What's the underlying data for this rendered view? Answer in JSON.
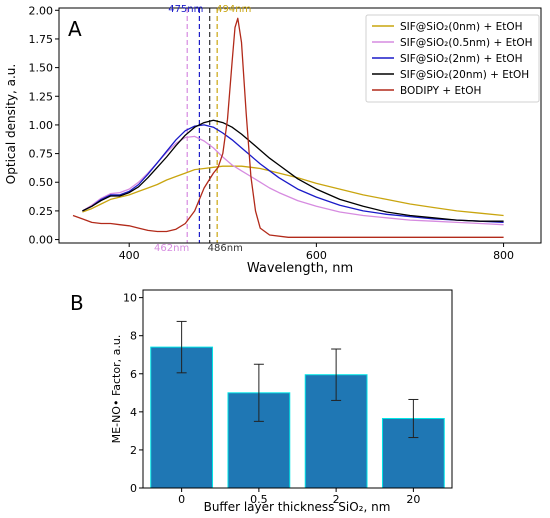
{
  "chart_data": [
    {
      "panel_label": "A",
      "type": "line",
      "xlabel": "Wavelength, nm",
      "ylabel": "Optical density, a.u.",
      "xlim": [
        325,
        840
      ],
      "ylim": [
        -0.03,
        2.02
      ],
      "xticks": [
        400,
        600,
        800
      ],
      "yticks": [
        0.0,
        0.25,
        0.5,
        0.75,
        1.0,
        1.25,
        1.5,
        1.75,
        2.0
      ],
      "legend_position": "top-right",
      "grid": false,
      "series": [
        {
          "name": "SIF@SiO₂(0nm) + EtOH",
          "color": "#c9a50f",
          "x": [
            350,
            360,
            370,
            380,
            390,
            400,
            410,
            420,
            430,
            440,
            450,
            460,
            470,
            480,
            490,
            500,
            510,
            520,
            530,
            540,
            550,
            560,
            580,
            600,
            625,
            650,
            675,
            700,
            725,
            750,
            775,
            800
          ],
          "y": [
            0.24,
            0.27,
            0.31,
            0.35,
            0.37,
            0.39,
            0.42,
            0.45,
            0.48,
            0.52,
            0.55,
            0.58,
            0.61,
            0.62,
            0.63,
            0.64,
            0.64,
            0.64,
            0.63,
            0.62,
            0.6,
            0.58,
            0.54,
            0.49,
            0.44,
            0.39,
            0.35,
            0.31,
            0.28,
            0.25,
            0.23,
            0.21
          ]
        },
        {
          "name": "SIF@SiO₂(0.5nm) + EtOH",
          "color": "#d68be0",
          "x": [
            350,
            360,
            370,
            380,
            390,
            400,
            410,
            420,
            430,
            440,
            450,
            460,
            470,
            480,
            490,
            500,
            510,
            520,
            530,
            540,
            550,
            560,
            580,
            600,
            625,
            650,
            675,
            700,
            725,
            750,
            775,
            800
          ],
          "y": [
            0.25,
            0.3,
            0.36,
            0.4,
            0.41,
            0.44,
            0.5,
            0.58,
            0.67,
            0.76,
            0.84,
            0.89,
            0.9,
            0.86,
            0.8,
            0.72,
            0.65,
            0.6,
            0.55,
            0.5,
            0.45,
            0.41,
            0.34,
            0.29,
            0.24,
            0.21,
            0.19,
            0.17,
            0.16,
            0.15,
            0.14,
            0.13
          ]
        },
        {
          "name": "SIF@SiO₂(2nm) + EtOH",
          "color": "#1a1ac8",
          "x": [
            350,
            360,
            370,
            380,
            390,
            400,
            410,
            420,
            430,
            440,
            450,
            460,
            470,
            480,
            490,
            500,
            510,
            520,
            530,
            540,
            550,
            560,
            580,
            600,
            625,
            650,
            675,
            700,
            725,
            750,
            775,
            800
          ],
          "y": [
            0.25,
            0.29,
            0.35,
            0.39,
            0.39,
            0.42,
            0.48,
            0.57,
            0.67,
            0.77,
            0.87,
            0.95,
            0.99,
            1.0,
            0.98,
            0.93,
            0.87,
            0.8,
            0.73,
            0.66,
            0.6,
            0.54,
            0.44,
            0.37,
            0.3,
            0.25,
            0.22,
            0.2,
            0.18,
            0.17,
            0.16,
            0.15
          ]
        },
        {
          "name": "SIF@SiO₂(20nm) + EtOH",
          "color": "#000000",
          "x": [
            350,
            360,
            370,
            380,
            390,
            400,
            410,
            420,
            430,
            440,
            450,
            460,
            470,
            480,
            490,
            500,
            510,
            520,
            530,
            540,
            550,
            560,
            580,
            600,
            625,
            650,
            675,
            700,
            725,
            750,
            775,
            800
          ],
          "y": [
            0.25,
            0.29,
            0.34,
            0.38,
            0.38,
            0.41,
            0.46,
            0.54,
            0.63,
            0.72,
            0.82,
            0.91,
            0.98,
            1.02,
            1.04,
            1.02,
            0.98,
            0.92,
            0.85,
            0.78,
            0.71,
            0.65,
            0.53,
            0.44,
            0.35,
            0.29,
            0.24,
            0.21,
            0.19,
            0.17,
            0.16,
            0.16
          ]
        },
        {
          "name": "BODIPY + EtOH",
          "color": "#b22a1a",
          "x": [
            340,
            350,
            360,
            370,
            380,
            390,
            400,
            410,
            420,
            430,
            440,
            450,
            460,
            470,
            480,
            490,
            495,
            500,
            505,
            510,
            513,
            516,
            520,
            525,
            530,
            535,
            540,
            550,
            570,
            600,
            650,
            700,
            750,
            800
          ],
          "y": [
            0.21,
            0.18,
            0.15,
            0.14,
            0.14,
            0.13,
            0.12,
            0.1,
            0.08,
            0.07,
            0.07,
            0.09,
            0.14,
            0.25,
            0.45,
            0.58,
            0.63,
            0.75,
            1.05,
            1.55,
            1.85,
            1.93,
            1.72,
            1.1,
            0.55,
            0.25,
            0.1,
            0.04,
            0.02,
            0.02,
            0.02,
            0.02,
            0.02,
            0.02
          ]
        }
      ],
      "reference_lines": [
        {
          "x": 462,
          "label": "462nm",
          "color": "#d68be0"
        },
        {
          "x": 475,
          "label": "475nm",
          "color": "#1a1ac8"
        },
        {
          "x": 486,
          "label": "486nm",
          "color": "#333333"
        },
        {
          "x": 494,
          "label": "494nm",
          "color": "#c9a50f"
        }
      ]
    },
    {
      "panel_label": "B",
      "type": "bar",
      "xlabel": "Buffer layer thickness SiO₂, nm",
      "ylabel": "ME-NO• Factor, a.u.",
      "ylim": [
        0,
        10.4
      ],
      "yticks": [
        0,
        2,
        4,
        6,
        8,
        10
      ],
      "categories": [
        "0",
        "0.5",
        "2",
        "20"
      ],
      "values": [
        7.4,
        5.0,
        5.95,
        3.65
      ],
      "errors": [
        1.35,
        1.5,
        1.35,
        1.0
      ],
      "bar_color": "#1f77b4",
      "edge_color": "#00e5e5",
      "grid": false
    }
  ]
}
